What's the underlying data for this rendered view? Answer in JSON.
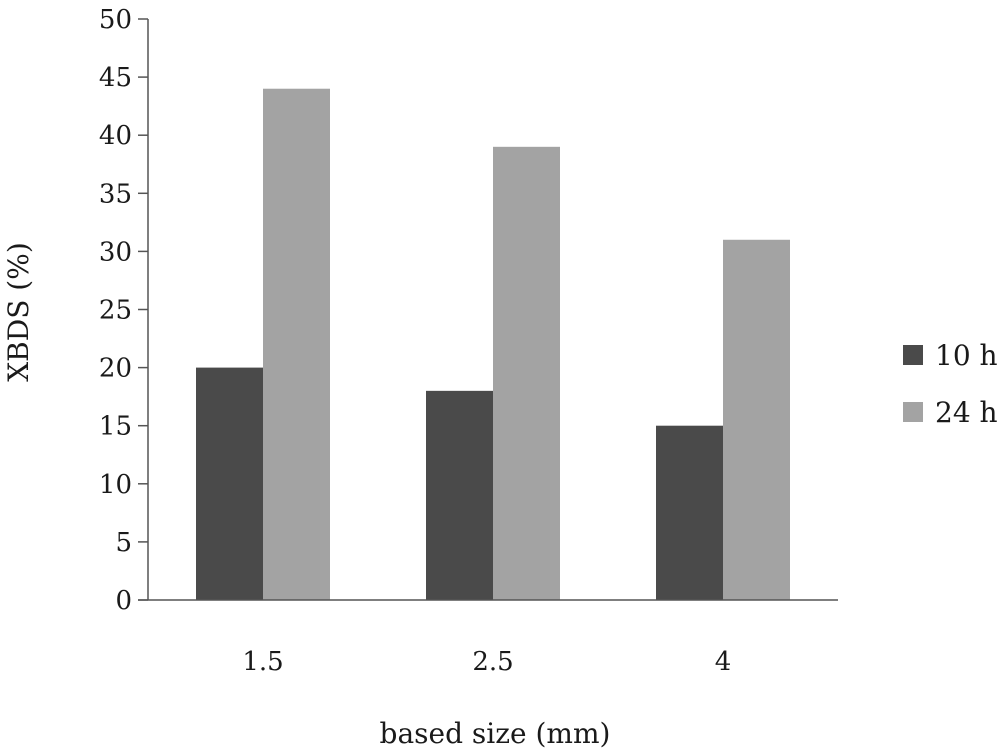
{
  "chart_data": {
    "type": "bar",
    "title": "",
    "xlabel": "based size (mm)",
    "ylabel": "XBDS (%)",
    "categories": [
      "1.5",
      "2.5",
      "4"
    ],
    "series": [
      {
        "name": "10 h",
        "values": [
          20,
          18,
          15
        ],
        "color": "#4a4a4a"
      },
      {
        "name": "24 h",
        "values": [
          44,
          39,
          31
        ],
        "color": "#a3a3a3"
      }
    ],
    "ylim": [
      0,
      50
    ],
    "yticks": [
      0,
      5,
      10,
      15,
      20,
      25,
      30,
      35,
      40,
      45,
      50
    ],
    "grid": false,
    "legend_position": "right"
  }
}
